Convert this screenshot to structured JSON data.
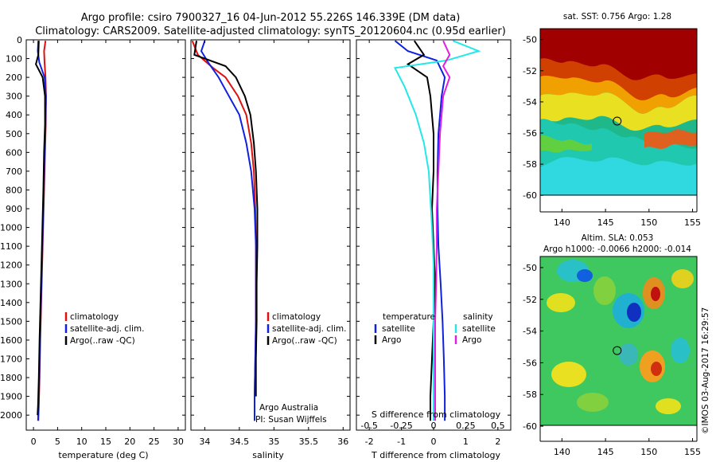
{
  "header": {
    "title_line1": "Argo profile: csiro 7900327_16 04-Jun-2012 55.226S 146.339E (DM data)",
    "title_line2": "Climatology: CARS2009. Satellite-adjusted climatology: synTS_20120604.nc (0.95d earlier)"
  },
  "colors": {
    "red": "#e01010",
    "blue": "#1020e0",
    "black": "#000000",
    "cyan": "#22e8e8",
    "magenta": "#e020e0"
  },
  "chart_data": [
    {
      "id": "temperature",
      "type": "line",
      "xlabel": "temperature (deg C)",
      "ylabel": "",
      "xlim": [
        -1.5,
        31.5
      ],
      "ylim": [
        2080,
        0
      ],
      "xticks": [
        0,
        5,
        10,
        15,
        20,
        25,
        30
      ],
      "xtick_labels": [
        "0",
        "5",
        "10",
        "15",
        "20",
        "25",
        "30"
      ],
      "yticks": [
        0,
        100,
        200,
        300,
        400,
        500,
        600,
        700,
        800,
        900,
        1000,
        1100,
        1200,
        1300,
        1400,
        1500,
        1600,
        1700,
        1800,
        1900,
        2000
      ],
      "ytick_labels": [
        "0",
        "100",
        "200",
        "300",
        "400",
        "500",
        "600",
        "700",
        "800",
        "900",
        "1000",
        "1100",
        "1200",
        "1300",
        "1400",
        "1500",
        "1600",
        "1700",
        "1800",
        "1900",
        "2000"
      ],
      "legend": [
        "climatology",
        "satellite-adj. clim.",
        "Argo(..raw -QC)"
      ],
      "series": [
        {
          "name": "climatology",
          "color": "red",
          "x": [
            2.5,
            2.2,
            2.3,
            2.5,
            2.6,
            2.55,
            2.4,
            2.2,
            2.0,
            1.8,
            1.6,
            1.4,
            1.25,
            1.1,
            1.0
          ],
          "y": [
            5,
            60,
            120,
            200,
            300,
            450,
            600,
            800,
            1000,
            1200,
            1400,
            1600,
            1800,
            1950,
            2030
          ]
        },
        {
          "name": "satellite-adj. clim.",
          "color": "blue",
          "x": [
            1.0,
            0.9,
            1.2,
            2.3,
            2.6,
            2.5,
            2.3,
            2.15,
            1.95,
            1.75,
            1.55,
            1.35,
            1.2,
            1.05,
            0.95
          ],
          "y": [
            5,
            60,
            120,
            200,
            300,
            450,
            600,
            800,
            1000,
            1200,
            1400,
            1600,
            1800,
            1950,
            2030
          ]
        },
        {
          "name": "Argo(..raw -QC)",
          "color": "black",
          "x": [
            1.1,
            1.0,
            0.5,
            1.9,
            2.4,
            2.4,
            2.2,
            2.05,
            1.85,
            1.65,
            1.45,
            1.25,
            1.1,
            0.95,
            0.85
          ],
          "y": [
            5,
            80,
            130,
            200,
            300,
            450,
            600,
            800,
            1000,
            1200,
            1400,
            1600,
            1800,
            1950,
            2000
          ]
        }
      ]
    },
    {
      "id": "salinity",
      "type": "line",
      "xlabel": "salinity",
      "ylabel": "",
      "xlim": [
        33.8,
        36.1
      ],
      "ylim": [
        2080,
        0
      ],
      "xticks": [
        34,
        34.5,
        35,
        35.5,
        36
      ],
      "xtick_labels": [
        "34",
        "34.5",
        "35",
        "35.5",
        "36"
      ],
      "legend": [
        "climatology",
        "satellite-adj. clim.",
        "Argo(..raw -QC)"
      ],
      "annotation": [
        "Argo Australia",
        "PI: Susan Wijffels"
      ],
      "series": [
        {
          "name": "climatology",
          "color": "red",
          "x": [
            33.82,
            33.9,
            34.12,
            34.3,
            34.48,
            34.6,
            34.67,
            34.71,
            34.73,
            34.74,
            34.74,
            34.74,
            34.73,
            34.72,
            34.72
          ],
          "y": [
            5,
            80,
            150,
            200,
            300,
            400,
            550,
            700,
            900,
            1100,
            1300,
            1500,
            1700,
            1900,
            2030
          ]
        },
        {
          "name": "satellite-adj. clim.",
          "color": "blue",
          "x": [
            34.0,
            33.95,
            34.05,
            34.2,
            34.35,
            34.5,
            34.6,
            34.67,
            34.72,
            34.74,
            34.74,
            34.74,
            34.73,
            34.72,
            34.72
          ],
          "y": [
            5,
            60,
            120,
            200,
            300,
            400,
            550,
            700,
            900,
            1100,
            1300,
            1500,
            1700,
            1900,
            2030
          ]
        },
        {
          "name": "Argo(..raw -QC)",
          "color": "black",
          "x": [
            33.88,
            33.85,
            34.3,
            34.45,
            34.58,
            34.66,
            34.71,
            34.74,
            34.76,
            34.76,
            34.75,
            34.75,
            34.74,
            34.74
          ],
          "y": [
            5,
            80,
            140,
            200,
            300,
            400,
            550,
            700,
            900,
            1100,
            1300,
            1500,
            1700,
            1900
          ]
        }
      ]
    },
    {
      "id": "differences",
      "type": "line",
      "xlabel": "T difference from climatology",
      "xlabel_top": "S difference from climatology",
      "xlim": [
        -2.4,
        2.4
      ],
      "ylim": [
        2080,
        0
      ],
      "xticks": [
        -2,
        -1,
        0,
        1,
        2
      ],
      "xtick_labels": [
        "-2",
        "-1",
        "0",
        "1",
        "2"
      ],
      "s_ticks": [
        -0.5,
        -0.25,
        0,
        0.25,
        0.5
      ],
      "s_tick_labels": [
        "-0.5",
        "-0.25",
        "0",
        "0.25",
        "0.5"
      ],
      "legend_headers": [
        "temperature",
        "salinity"
      ],
      "legend": [
        "satellite",
        "Argo",
        "satellite",
        "Argo"
      ],
      "series": [
        {
          "name": "satellite",
          "color": "blue",
          "x": [
            -1.2,
            -0.8,
            0.1,
            0.35,
            0.25,
            0.15,
            0.12,
            0.12,
            0.15,
            0.22,
            0.28,
            0.32,
            0.35,
            0.35
          ],
          "y": [
            5,
            60,
            110,
            200,
            300,
            500,
            700,
            900,
            1100,
            1300,
            1500,
            1700,
            1900,
            2030
          ]
        },
        {
          "name": "Argo",
          "color": "black",
          "x": [
            -0.6,
            -0.3,
            -0.8,
            -0.2,
            -0.1,
            0.0,
            0.0,
            -0.05,
            0.0,
            0.05,
            0.0,
            -0.05,
            -0.1,
            -0.1
          ],
          "y": [
            5,
            80,
            130,
            200,
            300,
            500,
            700,
            900,
            1100,
            1300,
            1500,
            1700,
            1900,
            2030
          ]
        },
        {
          "name": "satellite",
          "color": "cyan",
          "x": [
            0.6,
            1.4,
            0.4,
            -1.2,
            -0.9,
            -0.55,
            -0.3,
            -0.15,
            -0.1,
            -0.05,
            0.0,
            0.0,
            0.0,
            0.0
          ],
          "y": [
            5,
            60,
            110,
            150,
            250,
            400,
            550,
            700,
            850,
            1000,
            1200,
            1400,
            1600,
            2030
          ]
        },
        {
          "name": "Argo",
          "color": "magenta",
          "x": [
            0.3,
            0.5,
            0.3,
            0.5,
            0.3,
            0.2,
            0.15,
            0.1,
            0.1,
            0.08,
            0.05,
            0.05,
            0.05,
            0.05
          ],
          "y": [
            5,
            80,
            140,
            200,
            300,
            500,
            700,
            900,
            1100,
            1300,
            1500,
            1700,
            1900,
            2030
          ]
        }
      ]
    },
    {
      "id": "sst-map",
      "type": "heatmap",
      "title": "sat. SST: 0.756 Argo: 1.28",
      "xlim": [
        137.5,
        155.5
      ],
      "ylim": [
        -60.5,
        -49.3
      ],
      "xticks": [
        140,
        145,
        150,
        155
      ],
      "xtick_labels": [
        "140",
        "145",
        "150",
        "155"
      ],
      "yticks": [
        -50,
        -52,
        -54,
        -56,
        -58,
        -60
      ],
      "ytick_labels": [
        "-50",
        "-52",
        "-54",
        "-56",
        "-58",
        "-60"
      ],
      "marker": {
        "lon": 146.34,
        "lat": -55.23
      }
    },
    {
      "id": "sla-map",
      "type": "heatmap",
      "title_line1": "Altim. SLA: 0.053",
      "title_line2": "Argo h1000: -0.0066 h2000: -0.014",
      "xlim": [
        137.5,
        155.5
      ],
      "ylim": [
        -60.5,
        -49.3
      ],
      "xticks": [
        140,
        145,
        150,
        155
      ],
      "xtick_labels": [
        "140",
        "145",
        "150",
        "155"
      ],
      "yticks": [
        -50,
        -52,
        -54,
        -56,
        -58,
        -60
      ],
      "ytick_labels": [
        "-50",
        "-52",
        "-54",
        "-56",
        "-58",
        "-60"
      ],
      "marker": {
        "lon": 146.34,
        "lat": -55.23
      }
    }
  ],
  "footer": {
    "stamp": "©IMOS 03-Aug-2017 16:29:57"
  }
}
